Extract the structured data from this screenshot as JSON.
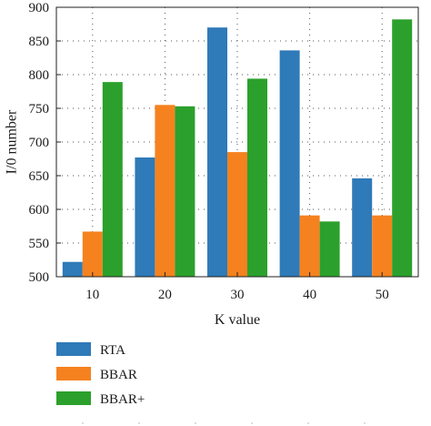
{
  "chart_data": {
    "type": "bar",
    "xlabel": "K value",
    "ylabel": "I/0 number",
    "categories": [
      "10",
      "20",
      "30",
      "40",
      "50"
    ],
    "ylim": [
      500,
      900
    ],
    "yticks": [
      500,
      550,
      600,
      650,
      700,
      750,
      800,
      850,
      900
    ],
    "grid": true,
    "legend_position": "below",
    "series": [
      {
        "name": "RTA",
        "color": "#2f7ab8",
        "values": [
          522,
          677,
          870,
          836,
          646
        ]
      },
      {
        "name": "BBAR",
        "color": "#f5821f",
        "values": [
          567,
          755,
          685,
          591,
          591
        ]
      },
      {
        "name": "BBAR+",
        "color": "#2ca02c",
        "values": [
          789,
          753,
          794,
          582,
          882
        ]
      }
    ]
  }
}
